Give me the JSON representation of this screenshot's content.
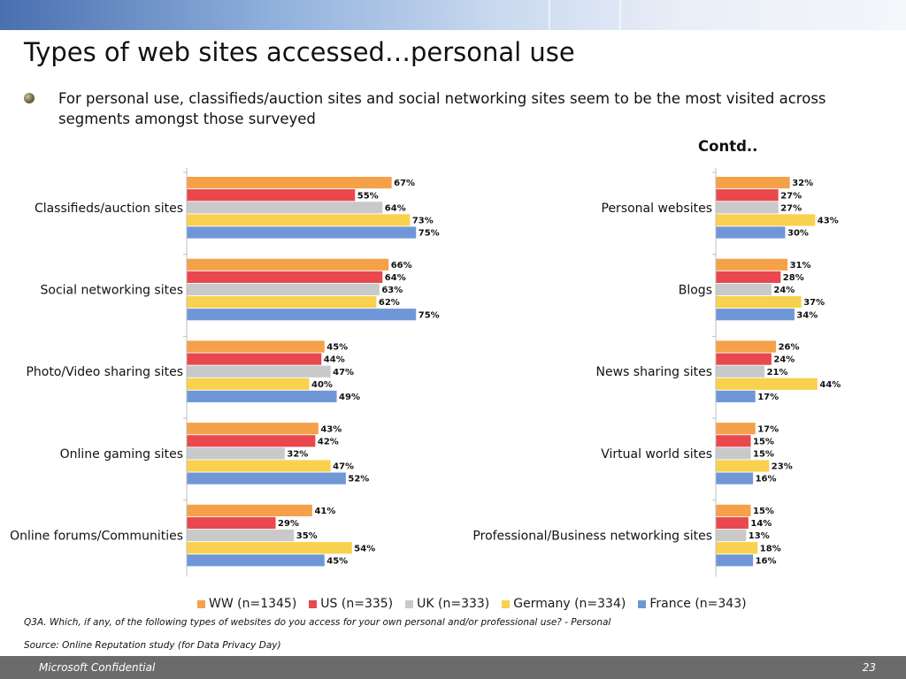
{
  "slide": {
    "title": "Types of web sites accessed…personal use",
    "bullet": "For personal use, classifieds/auction sites and social networking sites seem to be the most visited across segments amongst those surveyed",
    "contd": "Contd..",
    "question": "Q3A. Which, if any, of the following types of websites do you access for your own personal and/or professional use?  - Personal",
    "source": "Source: Online Reputation study (for Data Privacy Day)",
    "footer_left": "Microsoft Confidential",
    "footer_right": "23"
  },
  "chart_data": [
    {
      "type": "bar",
      "orientation": "horizontal",
      "categories": [
        "Classifieds/auction sites",
        "Social networking sites",
        "Photo/Video sharing sites",
        "Online gaming sites",
        "Online forums/Communities"
      ],
      "series": [
        {
          "name": "WW (n=1345)",
          "color": "#f4a149",
          "values": [
            67,
            66,
            45,
            43,
            41
          ]
        },
        {
          "name": "US (n=335)",
          "color": "#e8484e",
          "values": [
            55,
            64,
            44,
            42,
            29
          ]
        },
        {
          "name": "UK (n=333)",
          "color": "#c9c9c9",
          "values": [
            64,
            63,
            47,
            32,
            35
          ]
        },
        {
          "name": "Germany (n=334)",
          "color": "#f8d14e",
          "values": [
            73,
            62,
            40,
            47,
            54
          ]
        },
        {
          "name": "France (n=343)",
          "color": "#6f97d8",
          "values": [
            75,
            75,
            49,
            52,
            45
          ]
        }
      ],
      "value_suffix": "%"
    },
    {
      "type": "bar",
      "orientation": "horizontal",
      "categories": [
        "Personal websites",
        "Blogs",
        "News sharing sites",
        "Virtual world sites",
        "Professional/Business networking sites"
      ],
      "series": [
        {
          "name": "WW (n=1345)",
          "color": "#f4a149",
          "values": [
            32,
            31,
            26,
            17,
            15
          ]
        },
        {
          "name": "US (n=335)",
          "color": "#e8484e",
          "values": [
            27,
            28,
            24,
            15,
            14
          ]
        },
        {
          "name": "UK (n=333)",
          "color": "#c9c9c9",
          "values": [
            27,
            24,
            21,
            15,
            13
          ]
        },
        {
          "name": "Germany (n=334)",
          "color": "#f8d14e",
          "values": [
            43,
            37,
            44,
            23,
            18
          ]
        },
        {
          "name": "France (n=343)",
          "color": "#6f97d8",
          "values": [
            30,
            34,
            17,
            16,
            16
          ]
        }
      ],
      "value_suffix": "%"
    }
  ]
}
